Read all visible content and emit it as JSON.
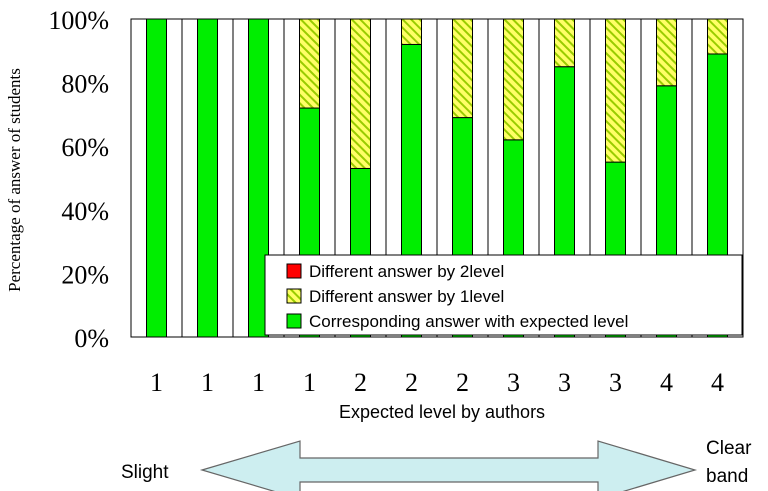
{
  "chart_data": {
    "type": "bar",
    "stacked": true,
    "categories": [
      "1",
      "1",
      "1",
      "1",
      "2",
      "2",
      "2",
      "3",
      "3",
      "3",
      "4",
      "4"
    ],
    "series": [
      {
        "name": "Corresponding answer with expected level",
        "values": [
          100,
          100,
          100,
          72,
          53,
          92,
          69,
          62,
          85,
          55,
          79,
          89
        ],
        "color": "#00ee00",
        "pattern": "solid"
      },
      {
        "name": "Different answer by 1level",
        "values": [
          0,
          0,
          0,
          28,
          47,
          8,
          31,
          38,
          15,
          45,
          21,
          11
        ],
        "color": "#ccdd00",
        "pattern": "diagonal-hatch"
      },
      {
        "name": "Different answer by 2level",
        "values": [
          0,
          0,
          0,
          0,
          0,
          0,
          0,
          0,
          0,
          0,
          0,
          0
        ],
        "color": "#ff0000",
        "pattern": "solid"
      }
    ],
    "ylim": [
      0,
      100
    ],
    "yticks": [
      "0%",
      "20%",
      "40%",
      "60%",
      "80%",
      "100%"
    ],
    "ylabel": "Percentage of answer of students",
    "xlabel": "Expected level by authors",
    "grid": true,
    "legend_position": "bottom-right, inside plot"
  },
  "scale": {
    "left_label": "Slight",
    "right_label_line1": "Clear",
    "right_label_line2": "band"
  }
}
